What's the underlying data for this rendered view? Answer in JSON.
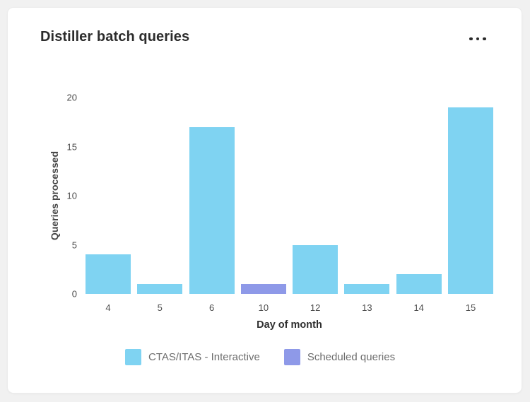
{
  "page": {
    "background": "#f1f1f1"
  },
  "card": {
    "title": "Distiller batch queries",
    "more_options_tooltip": "More options"
  },
  "chart_data": {
    "type": "bar",
    "title": "Distiller batch queries",
    "xlabel": "Day of month",
    "ylabel": "Queries processed",
    "categories": [
      "4",
      "5",
      "6",
      "10",
      "12",
      "13",
      "14",
      "15"
    ],
    "series": [
      {
        "name": "CTAS/ITAS - Interactive",
        "color": "#7FD3F2",
        "values": [
          4,
          1,
          17,
          0,
          5,
          1,
          2,
          19
        ]
      },
      {
        "name": "Scheduled queries",
        "color": "#8E99E8",
        "values": [
          0,
          0,
          0,
          1,
          0,
          0,
          0,
          0
        ]
      }
    ],
    "y_ticks": [
      0,
      5,
      10,
      15,
      20
    ],
    "ylim": [
      0,
      20
    ],
    "grid": false,
    "axis_lines": false,
    "legend_position": "bottom"
  }
}
